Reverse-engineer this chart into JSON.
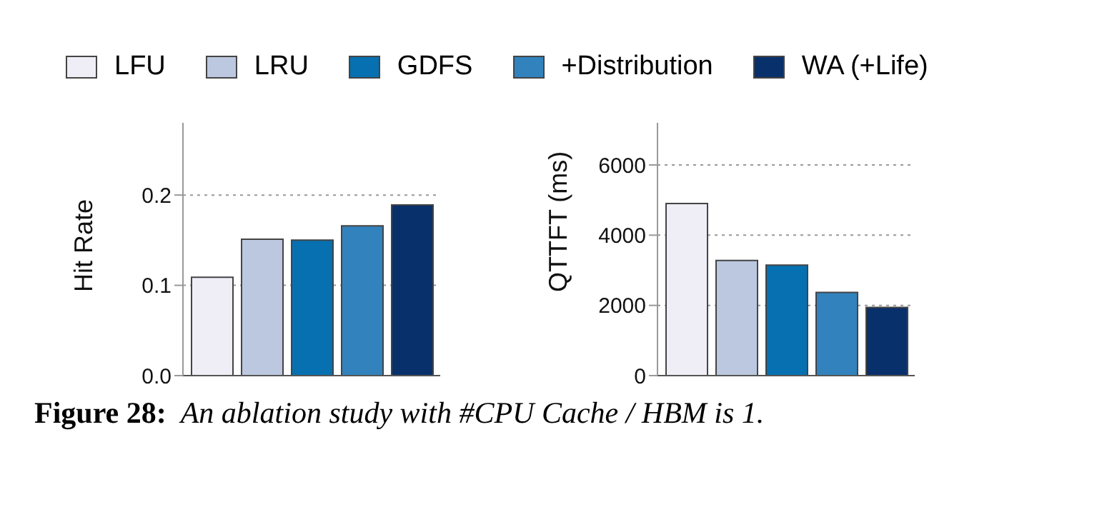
{
  "chart_data": [
    {
      "type": "bar",
      "ylabel": "Hit Rate",
      "categories": [
        null
      ],
      "ylim": [
        0,
        0.28
      ],
      "yticks": [
        {
          "value": 0,
          "label": "0.0"
        },
        0.1,
        0.2
      ],
      "grid": "y",
      "legend": "top",
      "series": [
        {
          "name": "LFU",
          "color": "#efedf5",
          "values": [
            0.109
          ]
        },
        {
          "name": "LRU",
          "color": "#bcc8e0",
          "values": [
            0.151
          ]
        },
        {
          "name": "GDFS",
          "color": "#0670b0",
          "values": [
            0.15
          ]
        },
        {
          "name": "+Distribution",
          "color": "#3282bd",
          "values": [
            0.166
          ]
        },
        {
          "name": "WA (+Life)",
          "color": "#08306b",
          "values": [
            0.189
          ]
        }
      ],
      "annotations": [
        "Figure 28:",
        "An ablation study with #CPU Cache / HBM is 1."
      ]
    },
    {
      "type": "bar",
      "ylabel": "QTTFT (ms)",
      "categories": [
        null
      ],
      "ylim": [
        0,
        7200
      ],
      "yticks": [
        0,
        2000,
        4000,
        6000
      ],
      "grid": "y",
      "series": [
        {
          "color": "#efedf5",
          "values": [
            4900
          ]
        },
        {
          "color": "#bcc8e0",
          "values": [
            3280
          ]
        },
        {
          "color": "#0670b0",
          "values": [
            3150
          ]
        },
        {
          "color": "#3282bd",
          "values": [
            2370
          ]
        },
        {
          "color": "#08306b",
          "values": [
            1940
          ]
        }
      ]
    }
  ]
}
